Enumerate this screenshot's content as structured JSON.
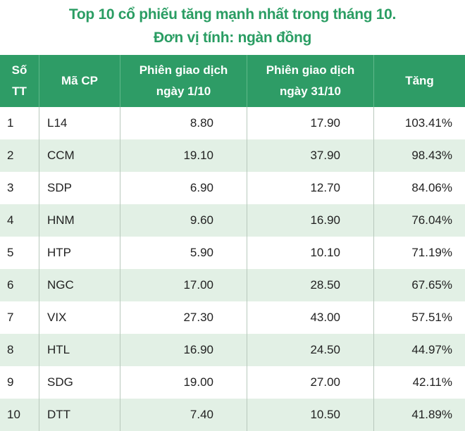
{
  "header": {
    "title": [
      "Top 10 cổ phiếu tăng mạnh nhất trong tháng 10.",
      "Đơn vị tính: ngàn đồng"
    ]
  },
  "table": {
    "columns": [
      [
        "Số",
        "TT"
      ],
      [
        "Mã CP"
      ],
      [
        "Phiên giao dịch",
        "ngày 1/10"
      ],
      [
        "Phiên giao dịch",
        "ngày 31/10"
      ],
      [
        "Tăng"
      ]
    ],
    "rows": [
      [
        "1",
        "L14",
        "8.80",
        "17.90",
        "103.41%"
      ],
      [
        "2",
        "CCM",
        "19.10",
        "37.90",
        "98.43%"
      ],
      [
        "3",
        "SDP",
        "6.90",
        "12.70",
        "84.06%"
      ],
      [
        "4",
        "HNM",
        "9.60",
        "16.90",
        "76.04%"
      ],
      [
        "5",
        "HTP",
        "5.90",
        "10.10",
        "71.19%"
      ],
      [
        "6",
        "NGC",
        "17.00",
        "28.50",
        "67.65%"
      ],
      [
        "7",
        "VIX",
        "27.30",
        "43.00",
        "57.51%"
      ],
      [
        "8",
        "HTL",
        "16.90",
        "24.50",
        "44.97%"
      ],
      [
        "9",
        "SDG",
        "19.00",
        "27.00",
        "42.11%"
      ],
      [
        "10",
        "DTT",
        "7.40",
        "10.50",
        "41.89%"
      ]
    ]
  }
}
